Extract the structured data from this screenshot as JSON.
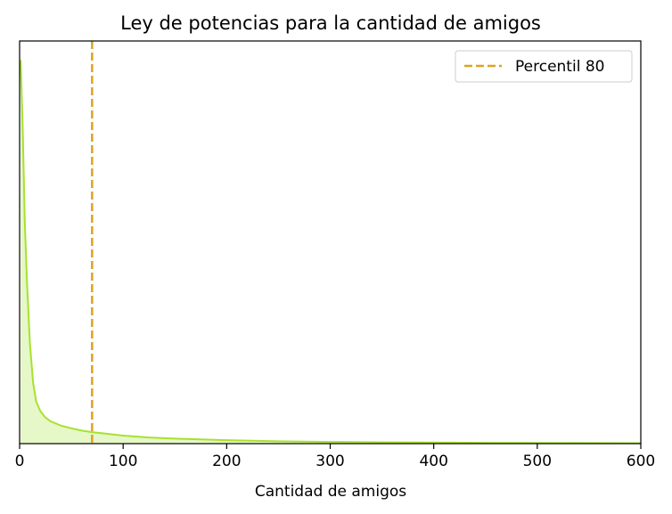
{
  "chart_data": {
    "type": "area",
    "title": "Ley de potencias para la cantidad de amigos",
    "xlabel": "Cantidad de amigos",
    "ylabel": "",
    "xlim": [
      0,
      600
    ],
    "ylim": [
      0,
      1.05
    ],
    "xticks": [
      0,
      100,
      200,
      300,
      400,
      500,
      600
    ],
    "xtick_labels": [
      "0",
      "100",
      "200",
      "300",
      "400",
      "500",
      "600"
    ],
    "show_yticks": false,
    "grid": false,
    "legend_position": "top-right",
    "series": [
      {
        "line_color": "#a6e22e",
        "fill_color": "#e6f7c8",
        "x": [
          1,
          3,
          5,
          7,
          10,
          13,
          16,
          20,
          25,
          30,
          40,
          50,
          60,
          70,
          80,
          100,
          125,
          150,
          200,
          250,
          300,
          350,
          400,
          450,
          500,
          550,
          600
        ],
        "y": [
          1.0,
          0.82,
          0.58,
          0.43,
          0.26,
          0.16,
          0.11,
          0.085,
          0.068,
          0.058,
          0.047,
          0.04,
          0.034,
          0.03,
          0.027,
          0.021,
          0.016,
          0.013,
          0.009,
          0.006,
          0.0045,
          0.0035,
          0.0028,
          0.0022,
          0.0018,
          0.0015,
          0.0012
        ]
      }
    ],
    "reference_lines": [
      {
        "name": "Percentil 80",
        "x": 70,
        "color": "#daa520",
        "style": "dashed"
      }
    ]
  }
}
